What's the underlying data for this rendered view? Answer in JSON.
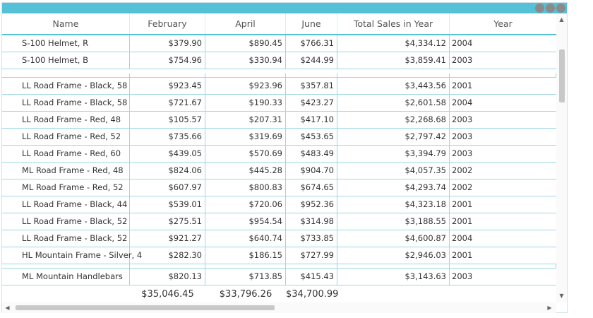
{
  "columns": [
    "Name",
    "February",
    "April",
    "June",
    "Total Sales in Year",
    "Year"
  ],
  "rows": [
    {
      "name": "S-100 Helmet, R",
      "february": "$379.90",
      "april": "$890.45",
      "june": "$766.31",
      "total": "$4,334.12",
      "year": "2004"
    },
    {
      "name": "S-100 Helmet, B",
      "february": "$754.96",
      "april": "$330.94",
      "june": "$244.99",
      "total": "$3,859.41",
      "year": "2003"
    },
    {
      "name": "LL Road Frame - Black, 58",
      "february": "$923.45",
      "april": "$923.96",
      "june": "$357.81",
      "total": "$3,443.56",
      "year": "2001"
    },
    {
      "name": "LL Road Frame - Black, 58",
      "february": "$721.67",
      "april": "$190.33",
      "june": "$423.27",
      "total": "$2,601.58",
      "year": "2004"
    },
    {
      "name": "LL Road Frame - Red, 48",
      "february": "$105.57",
      "april": "$207.31",
      "june": "$417.10",
      "total": "$2,268.68",
      "year": "2003"
    },
    {
      "name": "LL Road Frame - Red, 52",
      "february": "$735.66",
      "april": "$319.69",
      "june": "$453.65",
      "total": "$2,797.42",
      "year": "2003"
    },
    {
      "name": "LL Road Frame - Red, 60",
      "february": "$439.05",
      "april": "$570.69",
      "june": "$483.49",
      "total": "$3,394.79",
      "year": "2003"
    },
    {
      "name": "ML Road Frame - Red, 48",
      "february": "$824.06",
      "april": "$445.28",
      "june": "$904.70",
      "total": "$4,057.35",
      "year": "2002"
    },
    {
      "name": "ML Road Frame - Red, 52",
      "february": "$607.97",
      "april": "$800.83",
      "june": "$674.65",
      "total": "$4,293.74",
      "year": "2002"
    },
    {
      "name": "LL Road Frame - Black, 44",
      "february": "$539.01",
      "april": "$720.06",
      "june": "$952.36",
      "total": "$4,323.18",
      "year": "2001"
    },
    {
      "name": "LL Road Frame - Black, 52",
      "february": "$275.51",
      "april": "$954.54",
      "june": "$314.98",
      "total": "$3,188.55",
      "year": "2001"
    },
    {
      "name": "LL Road Frame - Black, 52",
      "february": "$921.27",
      "april": "$640.74",
      "june": "$733.85",
      "total": "$4,600.87",
      "year": "2004"
    },
    {
      "name": "HL Mountain Frame - Silver, 4",
      "february": "$282.30",
      "april": "$186.15",
      "june": "$727.99",
      "total": "$2,946.03",
      "year": "2001"
    },
    {
      "name": "ML Mountain Handlebars",
      "february": "$820.13",
      "april": "$713.85",
      "june": "$415.43",
      "total": "$3,143.63",
      "year": "2003"
    }
  ],
  "summary": {
    "february": "$35,046.45",
    "april": "$33,796.26",
    "june": "$34,700.99"
  },
  "icons": {
    "window_controls": "three-dots-icon",
    "scroll_up": "arrow-up-icon",
    "scroll_down": "arrow-down-icon",
    "scroll_left": "arrow-left-icon",
    "scroll_right": "arrow-right-icon"
  },
  "colors": {
    "accent": "#55c1d6",
    "gridline": "#9fd6e3",
    "scroll_thumb": "#c8c8c8"
  }
}
